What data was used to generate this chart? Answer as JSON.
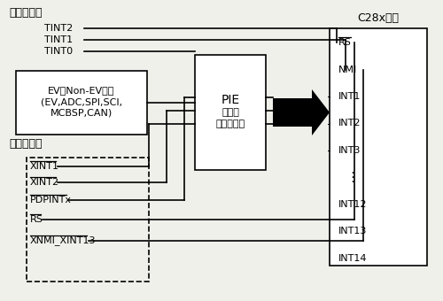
{
  "bg_color": "#f0f0eb",
  "internal_label": "内部中断源",
  "external_label": "外部中断源",
  "core_label": "C28x内核",
  "tint_signals": [
    "TINT2",
    "TINT1",
    "TINT0"
  ],
  "ev_line1": "EV和Non-EV外设",
  "ev_line2": "(EV,ADC,SPI,SCI,",
  "ev_line3": "MCBSP,CAN)",
  "pie_line1": "PIE",
  "pie_line2": "（外设",
  "pie_line3": "中断扩展）",
  "ext_signals": [
    "XINT1",
    "XINT2",
    "PDPINTx",
    "RS",
    "XNMI_XINT13"
  ],
  "core_signals": [
    "RS",
    "NMI",
    "INT1",
    "INT2",
    "INT3",
    "⋮",
    "INT12",
    "INT13",
    "INT14"
  ],
  "core_overline": [
    true,
    false,
    false,
    false,
    false,
    false,
    false,
    false,
    false
  ],
  "line_color": "#000000",
  "box_fill": "#ffffff",
  "font_size_label": 9,
  "font_size_signal": 8,
  "font_size_box": 8
}
